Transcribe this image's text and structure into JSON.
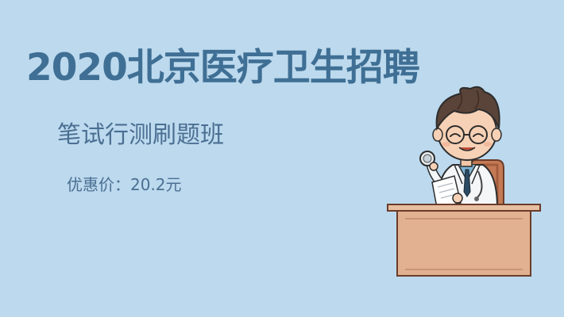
{
  "banner": {
    "title": "2020北京医疗卫生招聘",
    "subtitle": "笔试行测刷题班",
    "price_label": "优惠价",
    "price_separator": "：",
    "price_value": "20.2元"
  },
  "colors": {
    "background": "#bcd9ee",
    "title": "#3f6f94",
    "text": "#4b6f92",
    "desk": "#e2b192",
    "chair": "#c47a55",
    "hair": "#5a4338"
  },
  "icons": {
    "illustration": "doctor-at-desk-illustration"
  }
}
